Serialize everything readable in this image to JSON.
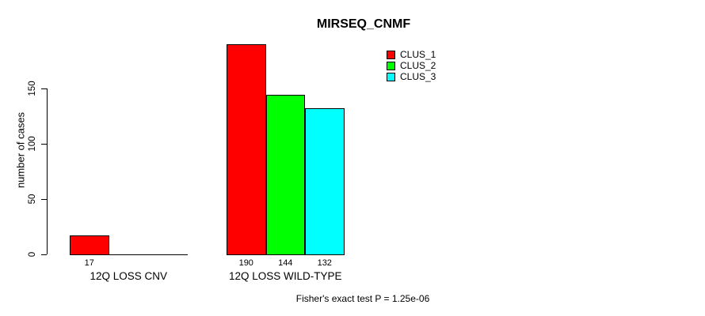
{
  "chart_data": {
    "type": "bar",
    "title": "MIRSEQ_CNMF",
    "ylabel": "number of cases",
    "xlabel": "",
    "ylim": [
      0,
      150
    ],
    "yticks": [
      0,
      50,
      100,
      150
    ],
    "grid": false,
    "legend_position": "top-right",
    "categories": [
      "12Q LOSS CNV",
      "12Q LOSS WILD-TYPE"
    ],
    "series": [
      {
        "name": "CLUS_1",
        "color": "#ff0000",
        "values": [
          17,
          190
        ]
      },
      {
        "name": "CLUS_2",
        "color": "#00ff00",
        "values": [
          0,
          144
        ]
      },
      {
        "name": "CLUS_3",
        "color": "#00ffff",
        "values": [
          0,
          132
        ]
      }
    ],
    "bar_value_labels": [
      "17",
      "190",
      "144",
      "132"
    ],
    "annotation": "Fisher's exact test P = 1.25e-06",
    "axis_color": "#000000",
    "background": "#ffffff"
  }
}
